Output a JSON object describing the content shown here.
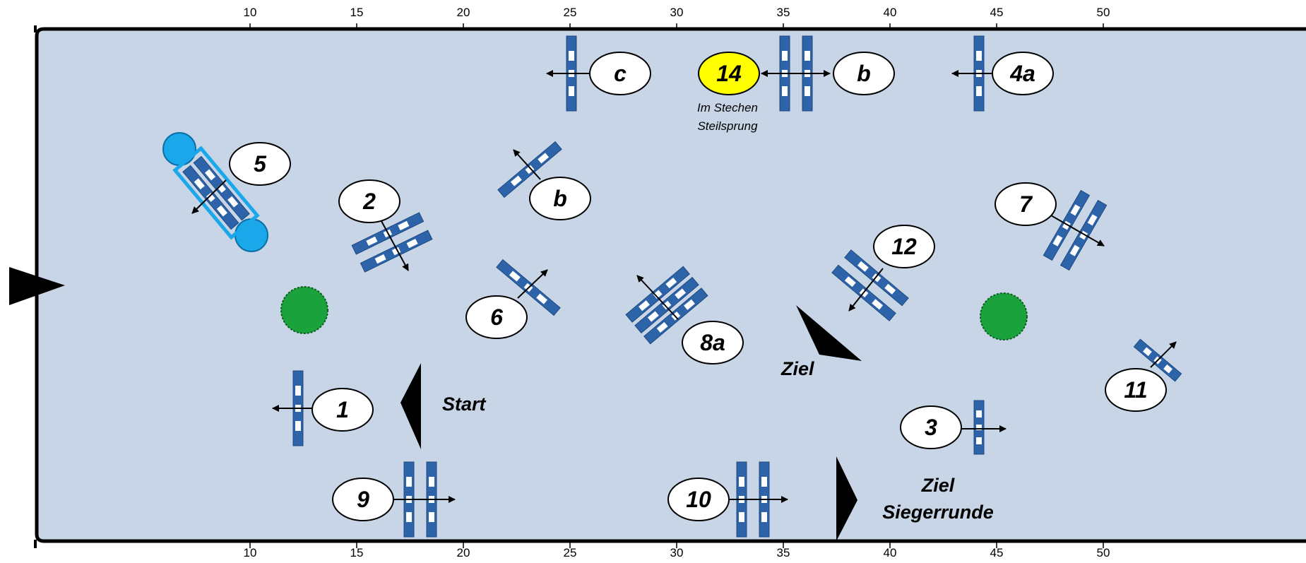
{
  "axis": {
    "ticks": [
      "10",
      "15",
      "20",
      "25",
      "30",
      "35",
      "40",
      "45",
      "50"
    ],
    "tick_values": [
      10,
      15,
      20,
      25,
      30,
      35,
      40,
      45,
      50
    ]
  },
  "colors": {
    "arena": "#c7d5e6",
    "border": "#000000",
    "pole": "#2d63a9",
    "label_fill": "#ffffff",
    "highlight": "#ffff00",
    "bush": "#1aa33c",
    "water": "#1aa8ea"
  },
  "fences": {
    "f1": "1",
    "f2": "2",
    "f3": "3",
    "f4a": "4a",
    "f5": "5",
    "f6": "6",
    "f7": "7",
    "f8a": "8a",
    "f9": "9",
    "f10": "10",
    "f11": "11",
    "f12": "12",
    "f14": "14",
    "b_top": "b",
    "b_mid": "b",
    "c_top": "c"
  },
  "notes": {
    "jumpoff_line1": "Im Stechen",
    "jumpoff_line2": "Steilsprung"
  },
  "markers": {
    "start": "Start",
    "finish": "Ziel",
    "finish_winner_line1": "Ziel",
    "finish_winner_line2": "Siegerrunde"
  },
  "icons": {
    "entrance": "entrance-triangle-icon",
    "bush": "bush-icon",
    "water": "water-tray-icon"
  }
}
